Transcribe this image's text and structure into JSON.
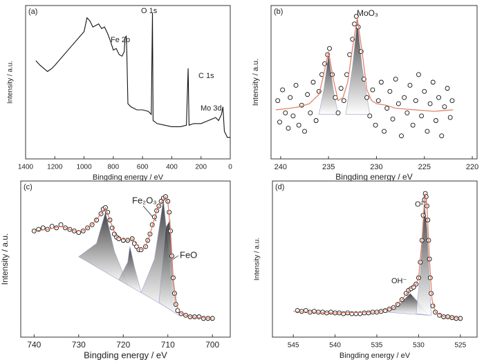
{
  "chart_data": [
    {
      "type": "line",
      "label": "(a)",
      "x_label": "Bingding energy / eV",
      "y_label": "Intensity / a.u.",
      "xlim": [
        1400,
        0
      ],
      "xticks": [
        1400,
        1200,
        1000,
        800,
        600,
        400,
        200,
        0
      ],
      "ylim": [
        0,
        100
      ],
      "color": "#111111",
      "x": [
        1330,
        1300,
        1250,
        1220,
        1200,
        1100,
        1000,
        980,
        960,
        940,
        900,
        880,
        860,
        840,
        820,
        800,
        780,
        760,
        740,
        725,
        720,
        712,
        708,
        700,
        680,
        640,
        600,
        560,
        540,
        532,
        528,
        500,
        450,
        400,
        340,
        300,
        288,
        282,
        250,
        200,
        150,
        100,
        80,
        60,
        50,
        40,
        20,
        0
      ],
      "values": [
        64,
        61,
        57,
        59,
        61,
        72,
        83,
        92,
        90,
        86,
        88,
        85,
        86,
        82,
        77,
        71,
        72,
        68,
        67,
        70,
        79,
        80,
        72,
        36,
        34,
        32,
        32,
        31,
        29,
        95,
        25,
        23,
        22,
        21,
        21,
        22,
        59,
        22,
        23,
        23,
        25,
        27,
        25,
        29,
        34,
        18,
        14,
        14
      ],
      "annotations": [
        "Fe 2p",
        "O 1s",
        "C 1s",
        "Mo 3d"
      ]
    },
    {
      "type": "scatter",
      "label": "(b)",
      "x_label": "Bingding energy / eV",
      "y_label": "Intensity / a.u.",
      "xlim": [
        241,
        219.5
      ],
      "xticks": [
        240,
        235,
        230,
        225,
        220
      ],
      "ylim": [
        0,
        100
      ],
      "color": "#111111",
      "x": [
        240.3,
        240.1,
        239.8,
        239.5,
        239.2,
        239.0,
        238.7,
        238.4,
        238.1,
        237.8,
        237.5,
        237.2,
        236.9,
        236.6,
        236.3,
        236.0,
        235.7,
        235.4,
        235.1,
        234.9,
        234.6,
        234.3,
        234.0,
        233.7,
        233.4,
        233.1,
        232.8,
        232.5,
        232.3,
        232.1,
        231.9,
        231.6,
        231.3,
        231.0,
        230.7,
        230.4,
        230.1,
        229.8,
        229.5,
        229.2,
        228.9,
        228.6,
        228.3,
        228.0,
        227.7,
        227.4,
        227.1,
        226.8,
        226.5,
        226.2,
        225.9,
        225.6,
        225.3,
        225.0,
        224.7,
        224.4,
        224.1,
        223.8,
        223.5,
        223.2,
        222.9,
        222.6,
        222.3,
        222.1
      ],
      "values": [
        38,
        24,
        45,
        30,
        20,
        40,
        28,
        48,
        22,
        35,
        18,
        42,
        30,
        50,
        25,
        44,
        55,
        62,
        68,
        72,
        55,
        40,
        30,
        46,
        38,
        55,
        68,
        78,
        88,
        93,
        86,
        70,
        52,
        40,
        28,
        45,
        22,
        38,
        50,
        18,
        33,
        44,
        26,
        52,
        36,
        15,
        40,
        30,
        48,
        22,
        38,
        55,
        28,
        44,
        18,
        36,
        50,
        25,
        40,
        15,
        34,
        46,
        27,
        38
      ],
      "fit": {
        "color": "#e07a5f",
        "x": [
          240.5,
          239,
          238,
          237,
          236,
          235.5,
          235,
          234.5,
          234,
          233.5,
          233,
          232.5,
          232,
          231.5,
          231,
          230.5,
          230,
          229,
          228,
          226,
          224,
          222
        ],
        "values": [
          32,
          33,
          34,
          36,
          42,
          55,
          70,
          52,
          38,
          40,
          50,
          72,
          92,
          70,
          45,
          38,
          36,
          35,
          33,
          32,
          31,
          32
        ]
      },
      "components": [
        {
          "x": [
            236,
            235.5,
            235,
            234.5,
            234
          ],
          "values": [
            29,
            45,
            68,
            45,
            29
          ]
        },
        {
          "x": [
            233.2,
            232.5,
            232,
            231.5,
            230.7
          ],
          "values": [
            29,
            60,
            90,
            60,
            29
          ]
        }
      ],
      "annotations": [
        "MoO₃"
      ]
    },
    {
      "type": "scatter",
      "label": "(c)",
      "x_label": "Bingding energy / eV",
      "y_label": "Intensity / a.u.",
      "xlim": [
        743,
        696
      ],
      "xticks": [
        740,
        730,
        720,
        710,
        700
      ],
      "ylim": [
        0,
        100
      ],
      "color": "#111111",
      "x": [
        740,
        739,
        738,
        737,
        736,
        735,
        734,
        733,
        732,
        731,
        730,
        729,
        728,
        727,
        726,
        725,
        724.5,
        724,
        723.5,
        723,
        722.5,
        722,
        721.5,
        721,
        720,
        719,
        718,
        717.5,
        717,
        716.5,
        716,
        715,
        714.5,
        714,
        713.5,
        713,
        712.5,
        712,
        711.5,
        711,
        710.5,
        710,
        709.7,
        709.4,
        709.1,
        708.8,
        708.5,
        708.2,
        707.8,
        707,
        706,
        705,
        704,
        703,
        702,
        701,
        700
      ],
      "values": [
        68,
        69,
        70,
        69,
        71,
        70,
        72,
        70,
        69,
        68,
        67,
        68,
        70,
        72,
        75,
        79,
        82,
        83,
        80,
        75,
        70,
        66,
        64,
        63,
        62,
        62,
        63,
        60,
        58,
        56,
        56,
        58,
        62,
        66,
        72,
        77,
        81,
        84,
        87,
        89,
        90,
        87,
        80,
        68,
        52,
        38,
        28,
        21,
        17,
        15,
        14,
        13,
        13,
        13,
        12,
        12,
        12
      ],
      "fit": {
        "color": "#e07a5f",
        "x": [
          740,
          737,
          734,
          731,
          729,
          727,
          725,
          724,
          723,
          721.5,
          719,
          718,
          716,
          715,
          714,
          712.5,
          711,
          710.5,
          710,
          709.4,
          708.8,
          708.2,
          707,
          705,
          700
        ],
        "values": [
          68,
          69,
          71,
          68,
          68,
          72,
          79,
          83,
          75,
          64,
          62,
          63,
          56,
          58,
          66,
          81,
          89,
          90,
          87,
          68,
          38,
          21,
          15,
          13,
          12
        ]
      },
      "components": [
        {
          "x": [
            730,
            726,
            724,
            722,
            719
          ],
          "values": [
            51.5,
            60,
            80,
            55,
            33.4
          ]
        },
        {
          "x": [
            721,
            719,
            718.5,
            717.5,
            716
          ],
          "values": [
            36.7,
            48,
            58,
            45,
            28.5
          ]
        },
        {
          "x": [
            716,
            713,
            711,
            710,
            709
          ],
          "values": [
            28.5,
            50,
            88,
            60,
            17
          ]
        },
        {
          "x": [
            712,
            710.5,
            709.5,
            709,
            707.5
          ],
          "values": [
            22,
            70,
            75,
            40,
            14
          ]
        }
      ],
      "annotations": [
        "Fe₂O₃",
        "FeO"
      ]
    },
    {
      "type": "scatter",
      "label": "(d)",
      "x_label": "Bingding energy / eV",
      "y_label": "Intensity / a.u.",
      "xlim": [
        547.5,
        523
      ],
      "xticks": [
        545,
        540,
        535,
        530,
        525
      ],
      "ylim": [
        0,
        100
      ],
      "color": "#111111",
      "x": [
        544.5,
        544,
        543.5,
        543,
        542.5,
        542,
        541.5,
        541,
        540.5,
        540,
        539.5,
        539,
        538.5,
        538,
        537.5,
        537,
        536.5,
        536,
        535.5,
        535,
        534.5,
        534,
        533.5,
        533,
        532.5,
        532,
        531.5,
        531.2,
        530.9,
        530.6,
        530.3,
        530,
        529.8,
        529.6,
        529.45,
        529.3,
        529.2,
        529.1,
        529,
        528.9,
        528.8,
        528.7,
        528.6,
        528.5,
        528.3,
        528,
        527.5,
        527,
        526.5,
        526,
        525.5,
        525
      ],
      "values": [
        17,
        16.5,
        17,
        16,
        16.5,
        16,
        16,
        15.5,
        16,
        15.5,
        15.5,
        15,
        15.5,
        15,
        15,
        15,
        15.5,
        15.5,
        16,
        16,
        16.5,
        17,
        18,
        19,
        21,
        24,
        28,
        30,
        31,
        32,
        34,
        38,
        48,
        62,
        78,
        88,
        92,
        90,
        84,
        75,
        62,
        50,
        38,
        28,
        20,
        16,
        14,
        13,
        13,
        12.5,
        12,
        12
      ],
      "fit": {
        "color": "#e07a5f",
        "x": [
          545,
          540,
          535,
          533,
          532,
          531,
          530.3,
          530,
          529.6,
          529.3,
          529.2,
          529,
          528.7,
          528.4,
          528,
          527,
          525
        ],
        "values": [
          16.5,
          15.5,
          16,
          19,
          24,
          31,
          34,
          38,
          62,
          88,
          92,
          84,
          50,
          24,
          16,
          13,
          12
        ]
      },
      "components": [
        {
          "x": [
            534,
            532.5,
            531,
            530,
            528.8
          ],
          "values": [
            16,
            20,
            28,
            22,
            14
          ]
        },
        {
          "x": [
            530.3,
            529.8,
            529.3,
            529,
            528.5
          ],
          "values": [
            15,
            40,
            85,
            70,
            14
          ]
        }
      ],
      "annotations": [
        "OH⁻",
        "O²⁻"
      ]
    }
  ]
}
